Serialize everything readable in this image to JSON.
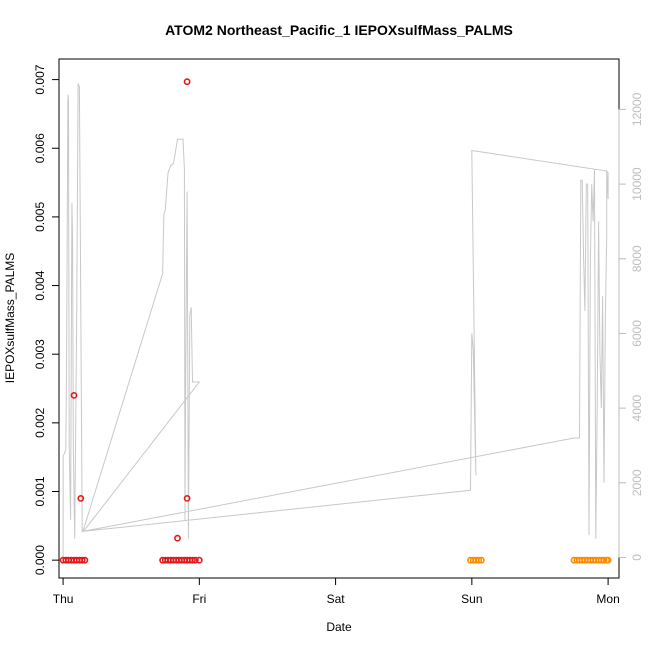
{
  "chart_data": {
    "type": "scatter",
    "title": "ATOM2 Northeast_Pacific_1 IEPOXsulfMass_PALMS",
    "xlabel": "Date",
    "ylabel": "IEPOXsulfMass_PALMS",
    "x_ticks": [
      "Thu",
      "Fri",
      "Sat",
      "Sun",
      "Mon"
    ],
    "xlim": [
      -0.03,
      4.08
    ],
    "ylim": [
      -0.00026,
      0.0073
    ],
    "y_ticks": [
      0.0,
      0.001,
      0.002,
      0.003,
      0.004,
      0.005,
      0.006,
      0.007
    ],
    "y_tick_labels": [
      "0.000",
      "0.001",
      "0.002",
      "0.003",
      "0.004",
      "0.005",
      "0.006",
      "0.007"
    ],
    "y2lim": [
      -550,
      13350
    ],
    "y2_ticks": [
      0,
      2000,
      4000,
      6000,
      8000,
      10000,
      12000
    ],
    "y2_tick_labels": [
      "0",
      "2000",
      "4000",
      "6000",
      "8000",
      "10000",
      "12000"
    ],
    "grid": false,
    "colors": {
      "red": "#e41a1c",
      "orange": "#ff8c00",
      "grey_line": "#c8c8c8",
      "right_axis": "#bdbdbd"
    },
    "series": [
      {
        "marker": "circle",
        "color": "#e41a1c",
        "points": [
          [
            0.0,
            0
          ],
          [
            0.02,
            0
          ],
          [
            0.04,
            0
          ],
          [
            0.06,
            0
          ],
          [
            0.08,
            0
          ],
          [
            0.1,
            0
          ],
          [
            0.12,
            0
          ],
          [
            0.14,
            0
          ],
          [
            0.16,
            0
          ],
          [
            0.08,
            0.0024
          ],
          [
            0.13,
            0.0009
          ],
          [
            0.73,
            0
          ],
          [
            0.75,
            0
          ],
          [
            0.77,
            0
          ],
          [
            0.79,
            0
          ],
          [
            0.81,
            0
          ],
          [
            0.83,
            0
          ],
          [
            0.85,
            0
          ],
          [
            0.87,
            0
          ],
          [
            0.89,
            0
          ],
          [
            0.91,
            0
          ],
          [
            0.93,
            0
          ],
          [
            0.95,
            0
          ],
          [
            0.97,
            0
          ],
          [
            1.0,
            0
          ],
          [
            0.84,
            0.00032
          ],
          [
            0.91,
            0.0009
          ],
          [
            0.91,
            0.00697
          ]
        ]
      },
      {
        "marker": "circle",
        "color": "#ff8c00",
        "points": [
          [
            2.99,
            0
          ],
          [
            3.01,
            0
          ],
          [
            3.03,
            0
          ],
          [
            3.05,
            0
          ],
          [
            3.07,
            0
          ],
          [
            3.75,
            0
          ],
          [
            3.77,
            0
          ],
          [
            3.79,
            0
          ],
          [
            3.81,
            0
          ],
          [
            3.83,
            0
          ],
          [
            3.85,
            0
          ],
          [
            3.87,
            0
          ],
          [
            3.89,
            0
          ],
          [
            3.91,
            0
          ],
          [
            3.93,
            0
          ],
          [
            3.95,
            0
          ],
          [
            3.97,
            0
          ],
          [
            3.99,
            0
          ],
          [
            4.0,
            0
          ]
        ]
      },
      {
        "type": "line",
        "axis": "right",
        "color": "#c8c8c8",
        "points": [
          [
            0.0,
            0
          ],
          [
            0.001,
            2700
          ],
          [
            0.02,
            2900
          ],
          [
            0.025,
            5000
          ],
          [
            0.035,
            12400
          ],
          [
            0.04,
            12200
          ],
          [
            0.045,
            3000
          ],
          [
            0.055,
            1000
          ],
          [
            0.065,
            9500
          ],
          [
            0.07,
            8500
          ],
          [
            0.075,
            3000
          ],
          [
            0.085,
            500
          ],
          [
            0.1,
            6500
          ],
          [
            0.11,
            12700
          ],
          [
            0.12,
            12600
          ],
          [
            0.14,
            700
          ],
          [
            0.15,
            750
          ],
          [
            0.73,
            7600
          ],
          [
            0.74,
            9200
          ],
          [
            0.75,
            9300
          ],
          [
            0.77,
            10300
          ],
          [
            0.79,
            10500
          ],
          [
            0.81,
            10550
          ],
          [
            0.84,
            11200
          ],
          [
            0.88,
            11200
          ],
          [
            0.89,
            10400
          ],
          [
            0.895,
            1000
          ],
          [
            0.9,
            5000
          ],
          [
            0.91,
            9800
          ],
          [
            0.915,
            5000
          ],
          [
            0.92,
            500
          ],
          [
            0.93,
            6500
          ],
          [
            0.94,
            6700
          ],
          [
            0.95,
            4700
          ],
          [
            1.0,
            4700
          ],
          [
            0.15,
            700
          ],
          [
            2.99,
            1800
          ],
          [
            3.0,
            6000
          ],
          [
            3.01,
            5600
          ],
          [
            3.03,
            2200
          ],
          [
            3.0,
            10900
          ],
          [
            3.99,
            10350
          ],
          [
            4.0,
            9600
          ],
          [
            4.0,
            10300
          ],
          [
            3.99,
            10350
          ],
          [
            3.99,
            8600
          ],
          [
            3.98,
            6500
          ],
          [
            3.97,
            2000
          ],
          [
            3.96,
            7000
          ],
          [
            3.95,
            4000
          ],
          [
            3.94,
            5500
          ],
          [
            3.93,
            9000
          ],
          [
            3.92,
            4000
          ],
          [
            3.91,
            500
          ],
          [
            3.9,
            10400
          ],
          [
            3.89,
            9000
          ],
          [
            3.88,
            10000
          ],
          [
            3.87,
            8000
          ],
          [
            3.86,
            600
          ],
          [
            3.85,
            10000
          ],
          [
            3.84,
            10000
          ],
          [
            3.83,
            6600
          ],
          [
            3.82,
            8000
          ],
          [
            3.81,
            10100
          ],
          [
            3.8,
            10100
          ],
          [
            3.79,
            3200
          ],
          [
            3.75,
            3200
          ],
          [
            0.15,
            700
          ]
        ]
      }
    ]
  }
}
